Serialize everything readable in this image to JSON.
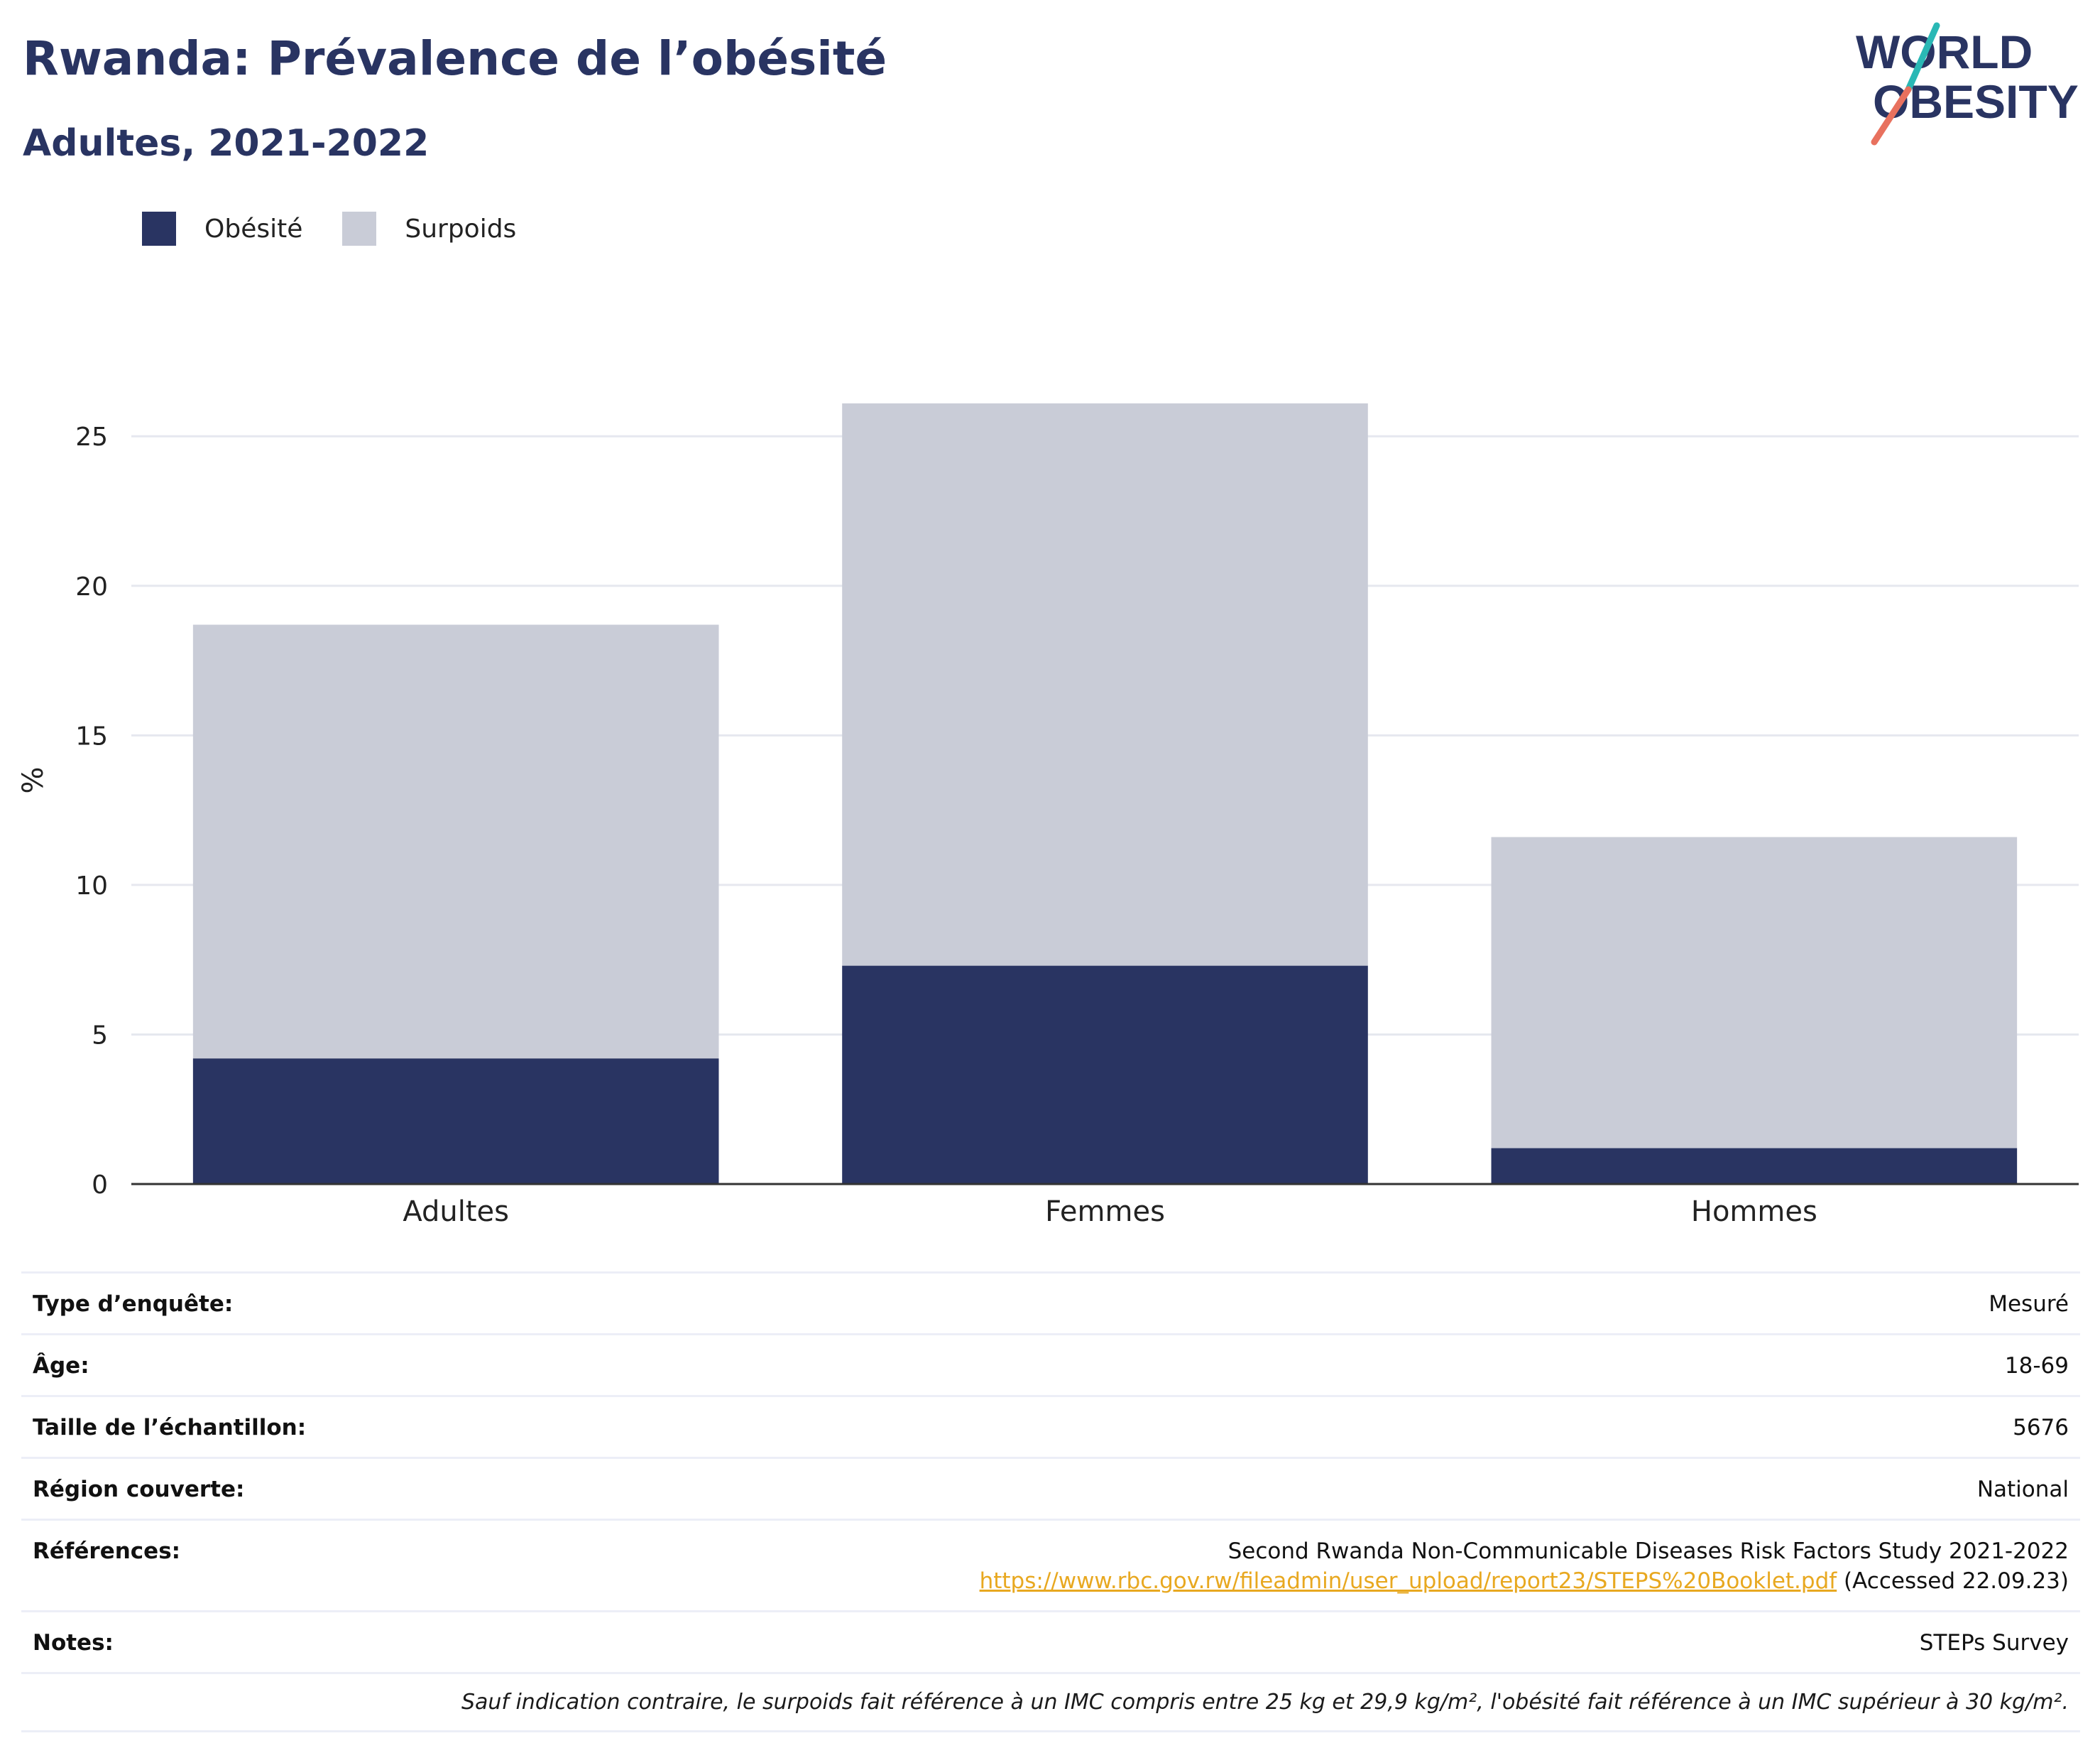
{
  "header": {
    "title": "Rwanda: Prévalence de l’obésité",
    "subtitle": "Adultes, 2021-2022"
  },
  "logo": {
    "line1": "WORLD",
    "line2": "OBESITY",
    "colors": {
      "text": "#293462",
      "slash_top": "#2ab8b5",
      "slash_bottom": "#e8715e"
    }
  },
  "legend": [
    {
      "label": "Obésité",
      "color": "#293462"
    },
    {
      "label": "Surpoids",
      "color": "#c9ccd7"
    }
  ],
  "chart_data": {
    "type": "bar",
    "stacked": true,
    "categories": [
      "Adultes",
      "Femmes",
      "Hommes"
    ],
    "series": [
      {
        "name": "Obésité",
        "values": [
          4.2,
          7.3,
          1.2
        ],
        "color": "#293462"
      },
      {
        "name": "Surpoids",
        "values": [
          14.5,
          18.8,
          10.4
        ],
        "color": "#c9ccd7"
      }
    ],
    "ylabel": "%",
    "ylim": [
      0,
      27
    ],
    "yticks": [
      0,
      5,
      10,
      15,
      20,
      25
    ],
    "grid": true,
    "legend_position": "top-left"
  },
  "info": {
    "survey_type": {
      "label": "Type d’enquête:",
      "value": "Mesuré"
    },
    "age": {
      "label": "Âge:",
      "value": "18-69"
    },
    "sample_size": {
      "label": "Taille de l’échantillon:",
      "value": "5676"
    },
    "region": {
      "label": "Région couverte:",
      "value": "National"
    },
    "references": {
      "label": "Références:",
      "study": "Second Rwanda Non-Communicable Diseases Risk Factors Study 2021-2022",
      "url": "https://www.rbc.gov.rw/fileadmin/user_upload/report23/STEPS%20Booklet.pdf",
      "accessed": " (Accessed 22.09.23)"
    },
    "notes": {
      "label": "Notes:",
      "value": "STEPs Survey"
    },
    "footnote": "Sauf indication contraire, le surpoids fait référence à un IMC compris entre 25 kg et 29,9 kg/m², l'obésité fait référence à un IMC supérieur à 30 kg/m²."
  }
}
